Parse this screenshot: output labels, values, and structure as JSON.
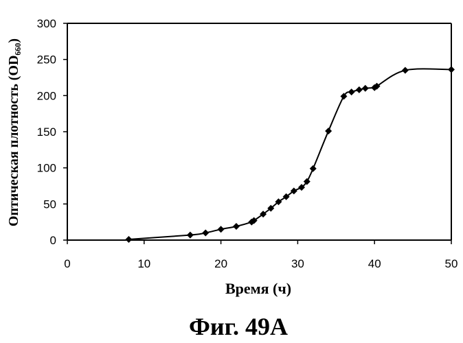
{
  "chart_data": {
    "type": "line",
    "title": "",
    "xlabel": "Время (ч)",
    "ylabel": "Оптическая плотность (OD₆₆₀)",
    "caption": "Фиг. 49A",
    "xlim": [
      0,
      50
    ],
    "ylim": [
      0,
      300
    ],
    "xticks": [
      0,
      10,
      20,
      30,
      40,
      50
    ],
    "yticks": [
      0,
      50,
      100,
      150,
      200,
      250,
      300
    ],
    "grid": false,
    "legend": "none",
    "marker": "diamond",
    "color": "#000000",
    "series": [
      {
        "x": [
          8,
          16,
          18,
          20,
          22,
          24,
          24.3,
          25.5,
          26.5,
          27.5,
          28.5,
          29.5,
          30.5,
          31.2,
          32,
          34,
          36,
          37,
          38,
          38.8,
          40,
          40.3,
          44,
          50
        ],
        "y": [
          1,
          7,
          10,
          15,
          19,
          25,
          27,
          36,
          44,
          53,
          60,
          68,
          73,
          81,
          99,
          151,
          199,
          205,
          208,
          210,
          211,
          213,
          235,
          236
        ]
      }
    ]
  }
}
